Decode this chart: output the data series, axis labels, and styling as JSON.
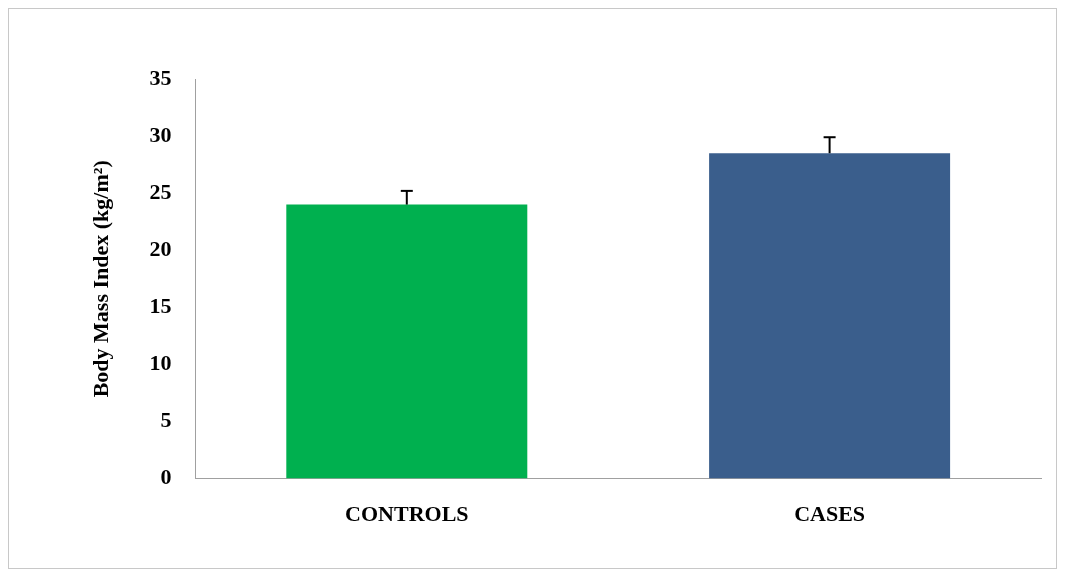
{
  "chart_data": {
    "type": "bar",
    "ylabel": "Body Mass Index (kg/m²)",
    "categories": [
      "CONTROLS",
      "CASES"
    ],
    "values": [
      24,
      28.5
    ],
    "colors": [
      "#00b04f",
      "#3a5e8c"
    ],
    "errors": [
      [
        24,
        25.2
      ],
      [
        28.5,
        29.9
      ]
    ],
    "ylim": [
      0,
      35
    ],
    "yticks": [
      0,
      5,
      10,
      15,
      20,
      25,
      30,
      35
    ],
    "grid": false,
    "legend": false
  }
}
